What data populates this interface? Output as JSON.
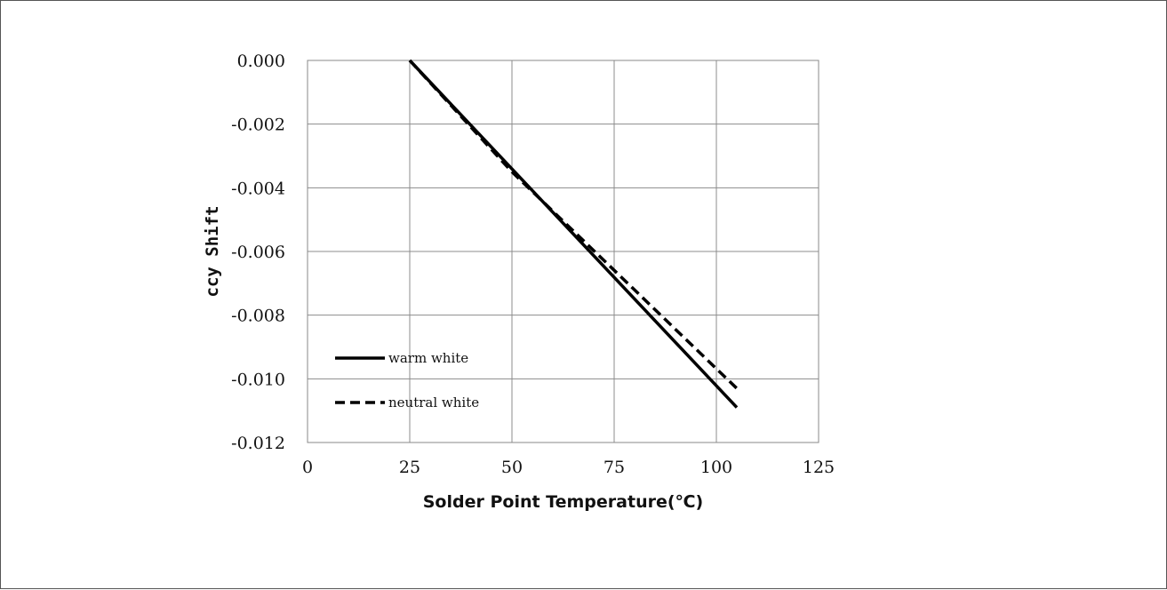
{
  "chart_data": {
    "type": "line",
    "xlabel": "Solder Point Temperature(℃)",
    "ylabel": "ccy Shift",
    "xlim": [
      0,
      125
    ],
    "ylim": [
      -0.012,
      0.0
    ],
    "x_ticks": [
      "0",
      "25",
      "50",
      "75",
      "100",
      "125"
    ],
    "y_ticks": [
      "0.000",
      "-0.002",
      "-0.004",
      "-0.006",
      "-0.008",
      "-0.010",
      "-0.012"
    ],
    "grid": true,
    "legend_position": "bottom-left",
    "series": [
      {
        "name": "warm white",
        "style": "solid",
        "color": "#000000",
        "x": [
          25,
          105
        ],
        "y": [
          0.0,
          -0.0109
        ]
      },
      {
        "name": "neutral white",
        "style": "dashed",
        "color": "#000000",
        "x": [
          25,
          50,
          105
        ],
        "y": [
          0.0,
          -0.0035,
          -0.0103
        ]
      }
    ]
  }
}
